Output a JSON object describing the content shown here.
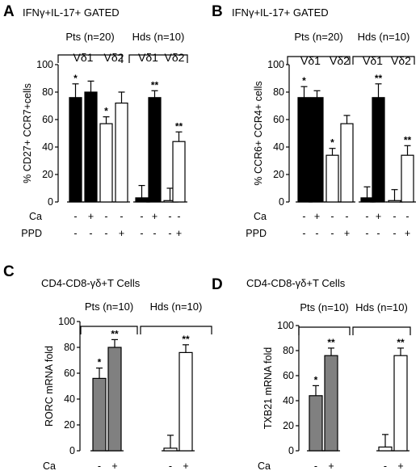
{
  "chart_data": [
    {
      "type": "bar",
      "panel": "A",
      "title": "IFNγ+IL-17+ GATED",
      "ylabel": "% CD27+ CCR7+cells",
      "ylim": [
        0,
        100
      ],
      "yticks": [
        "0",
        "20",
        "40",
        "60",
        "80",
        "100"
      ],
      "groups": [
        {
          "label": "Pts (n=20)",
          "subgroups": [
            "Vδ1",
            "Vδ2"
          ]
        },
        {
          "label": "Hds (n=10)",
          "subgroups": [
            "Vδ1",
            "Vδ2"
          ]
        }
      ],
      "treatments": [
        {
          "label": "Ca",
          "marks": [
            "-",
            "+",
            "-",
            "-",
            "-",
            "+",
            "-",
            "-"
          ]
        },
        {
          "label": "PPD",
          "marks": [
            "-",
            "-",
            "-",
            "+",
            "-",
            "-",
            "-",
            "+"
          ]
        }
      ],
      "bars": [
        {
          "value": 76,
          "error": 10,
          "fill": "black",
          "sig": "*"
        },
        {
          "value": 80,
          "error": 8,
          "fill": "black",
          "sig": ""
        },
        {
          "value": 57,
          "error": 5,
          "fill": "white",
          "sig": "*"
        },
        {
          "value": 72,
          "error": 8,
          "fill": "white",
          "sig": ""
        },
        {
          "value": 3,
          "error": 9,
          "fill": "black",
          "sig": ""
        },
        {
          "value": 76,
          "error": 5,
          "fill": "black",
          "sig": "**"
        },
        {
          "value": 1,
          "error": 9,
          "fill": "white",
          "sig": ""
        },
        {
          "value": 44,
          "error": 7,
          "fill": "white",
          "sig": "**"
        }
      ]
    },
    {
      "type": "bar",
      "panel": "B",
      "title": "IFNγ+IL-17+ GATED",
      "ylabel": "% CCR6+ CCR4+ cells",
      "ylim": [
        0,
        100
      ],
      "yticks": [
        "0",
        "20",
        "40",
        "60",
        "80",
        "100"
      ],
      "groups": [
        {
          "label": "Pts (n=20)",
          "subgroups": [
            "Vδ1",
            "Vδ2"
          ]
        },
        {
          "label": "Hds (n=10)",
          "subgroups": [
            "Vδ1",
            "Vδ2"
          ]
        }
      ],
      "treatments": [
        {
          "label": "Ca",
          "marks": [
            "-",
            "+",
            "-",
            "-",
            "-",
            "+",
            "-",
            "-"
          ]
        },
        {
          "label": "PPD",
          "marks": [
            "-",
            "-",
            "-",
            "+",
            "-",
            "-",
            "-",
            "+"
          ]
        }
      ],
      "bars": [
        {
          "value": 76,
          "error": 8,
          "fill": "black",
          "sig": "*"
        },
        {
          "value": 76,
          "error": 5,
          "fill": "black",
          "sig": ""
        },
        {
          "value": 34,
          "error": 5,
          "fill": "white",
          "sig": "*"
        },
        {
          "value": 57,
          "error": 6,
          "fill": "white",
          "sig": ""
        },
        {
          "value": 3,
          "error": 8,
          "fill": "black",
          "sig": ""
        },
        {
          "value": 76,
          "error": 10,
          "fill": "black",
          "sig": "**"
        },
        {
          "value": 1,
          "error": 8,
          "fill": "white",
          "sig": ""
        },
        {
          "value": 34,
          "error": 7,
          "fill": "white",
          "sig": "**"
        }
      ]
    },
    {
      "type": "bar",
      "panel": "C",
      "title": "CD4-CD8-γδ+T Cells",
      "ylabel": "RORC mRNA fold",
      "ylim": [
        0,
        100
      ],
      "yticks": [
        "0",
        "20",
        "40",
        "60",
        "80",
        "100"
      ],
      "groups": [
        {
          "label": "Pts (n=10)",
          "subgroups": []
        },
        {
          "label": "Hds (n=10)",
          "subgroups": []
        }
      ],
      "treatments": [
        {
          "label": "Ca",
          "marks": [
            "-",
            "+",
            "-",
            "+"
          ]
        }
      ],
      "bars": [
        {
          "value": 56,
          "error": 8,
          "fill": "gray",
          "sig": "*"
        },
        {
          "value": 80,
          "error": 6,
          "fill": "gray",
          "sig": "**"
        },
        {
          "value": 2,
          "error": 10,
          "fill": "white",
          "sig": ""
        },
        {
          "value": 76,
          "error": 6,
          "fill": "white",
          "sig": "**"
        }
      ]
    },
    {
      "type": "bar",
      "panel": "D",
      "title": "CD4-CD8-γδ+T Cells",
      "ylabel": "TXB21 mRNA fold",
      "ylim": [
        0,
        100
      ],
      "yticks": [
        "0",
        "20",
        "40",
        "60",
        "80",
        "100"
      ],
      "groups": [
        {
          "label": "Pts (n=10)",
          "subgroups": []
        },
        {
          "label": "Hds (n=10)",
          "subgroups": []
        }
      ],
      "treatments": [
        {
          "label": "Ca",
          "marks": [
            "-",
            "+",
            "-",
            "+"
          ]
        }
      ],
      "bars": [
        {
          "value": 44,
          "error": 8,
          "fill": "gray",
          "sig": "*"
        },
        {
          "value": 76,
          "error": 6,
          "fill": "gray",
          "sig": "**"
        },
        {
          "value": 3,
          "error": 10,
          "fill": "white",
          "sig": ""
        },
        {
          "value": 76,
          "error": 6,
          "fill": "white",
          "sig": "**"
        }
      ]
    }
  ],
  "colors": {
    "black": "#000000",
    "white": "#ffffff",
    "gray": "#808080",
    "text": "#000000"
  }
}
